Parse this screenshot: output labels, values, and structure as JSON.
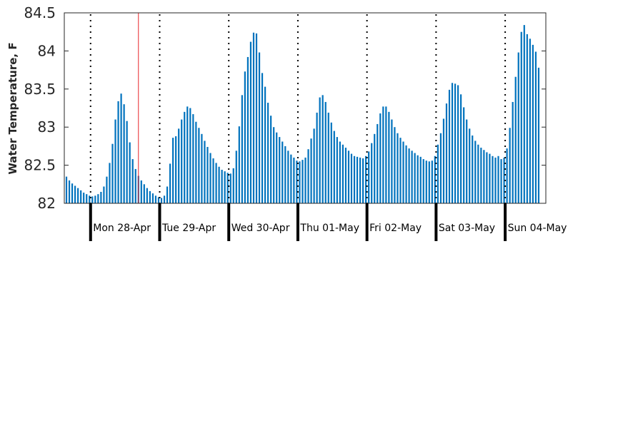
{
  "chart_data": {
    "type": "bar",
    "title": "",
    "xlabel": "",
    "ylabel": "Water Temperature, F",
    "ylim": [
      82,
      84.5
    ],
    "yticks": [
      "82",
      "82.5",
      "83",
      "83.5",
      "84",
      "84.5"
    ],
    "day_labels": [
      "Mon 28-Apr",
      "Tue 29-Apr",
      "Wed 30-Apr",
      "Thu 01-May",
      "Fri 02-May",
      "Sat 03-May",
      "Sun 04-May"
    ],
    "series": [
      {
        "values": [
          82.35,
          82.3,
          82.26,
          82.23,
          82.2,
          82.17,
          82.14,
          82.12,
          82.1,
          82.09,
          82.1,
          82.12,
          82.15,
          82.22,
          82.35,
          82.53,
          82.78,
          83.1,
          83.34,
          83.44,
          83.3,
          83.08,
          82.8,
          82.58,
          82.45,
          82.36,
          82.3,
          82.25,
          82.2,
          82.16,
          82.13,
          82.1,
          82.08,
          82.07,
          82.1,
          82.22,
          82.52,
          82.86,
          82.88,
          82.98,
          83.1,
          83.2,
          83.27,
          83.25,
          83.17,
          83.07,
          82.99,
          82.91,
          82.82,
          82.74,
          82.66,
          82.59,
          82.53,
          82.48,
          82.44,
          82.42,
          82.4,
          82.39,
          82.46,
          82.69,
          83.01,
          83.42,
          83.73,
          83.92,
          84.12,
          84.24,
          84.23,
          83.98,
          83.71,
          83.53,
          83.32,
          83.15,
          83.0,
          82.93,
          82.87,
          82.81,
          82.75,
          82.69,
          82.64,
          82.6,
          82.56,
          82.55,
          82.57,
          82.6,
          82.71,
          82.85,
          82.98,
          83.19,
          83.39,
          83.42,
          83.33,
          83.19,
          83.06,
          82.95,
          82.87,
          82.81,
          82.77,
          82.73,
          82.69,
          82.65,
          82.62,
          82.61,
          82.6,
          82.59,
          82.62,
          82.68,
          82.79,
          82.91,
          83.04,
          83.18,
          83.27,
          83.27,
          83.2,
          83.1,
          83.0,
          82.92,
          82.86,
          82.81,
          82.76,
          82.72,
          82.69,
          82.66,
          82.63,
          82.61,
          82.58,
          82.56,
          82.55,
          82.56,
          82.62,
          82.77,
          82.92,
          83.11,
          83.31,
          83.49,
          83.58,
          83.57,
          83.55,
          83.43,
          83.26,
          83.1,
          82.98,
          82.89,
          82.82,
          82.77,
          82.73,
          82.7,
          82.67,
          82.65,
          82.62,
          82.6,
          82.62,
          82.58,
          82.6,
          82.72,
          82.99,
          83.33,
          83.66,
          83.98,
          84.25,
          84.34,
          84.22,
          84.16,
          84.08,
          83.99,
          83.78
        ]
      }
    ],
    "highlight_index": 25,
    "colors": {
      "bar": "#0072bd",
      "highlight": "#e8262b",
      "axis": "#262626",
      "divider": "#000000"
    }
  }
}
